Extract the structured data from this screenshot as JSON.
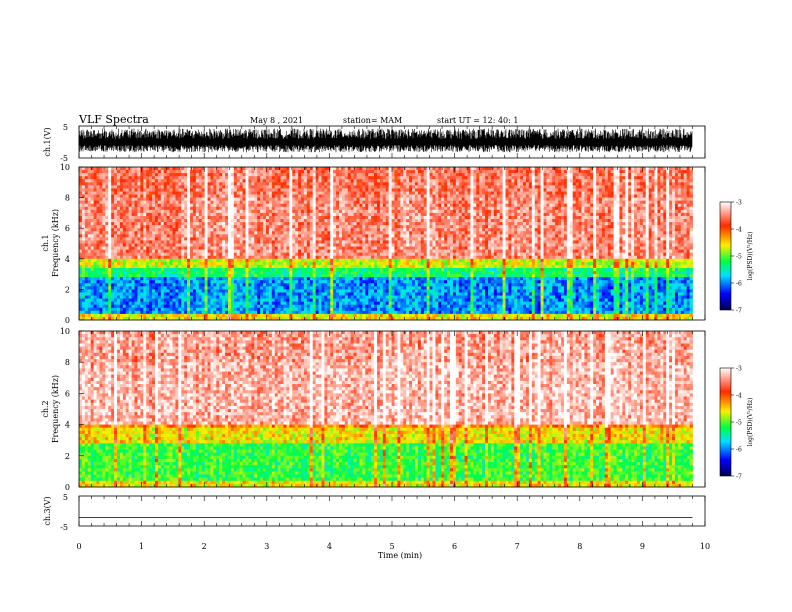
{
  "header": {
    "title": "VLF Spectra",
    "date": "May 8  , 2021",
    "station": "station= MAM",
    "start_ut": "start  UT  =   12: 40: 1"
  },
  "colorbar": {
    "label": "log(PSD)(V²/Hz)",
    "ticks": [
      "-3",
      "-4",
      "-5",
      "-6",
      "-7"
    ],
    "values": [
      -3,
      -4,
      -5,
      -6,
      -7
    ],
    "colors": [
      "#ffffff",
      "#ff2a00",
      "#ffff00",
      "#00ff40",
      "#00e0ff",
      "#0000ff",
      "#000050"
    ]
  },
  "xaxis": {
    "label": "Time  (min)",
    "ticks": [
      "0",
      "1",
      "2",
      "3",
      "4",
      "5",
      "6",
      "7",
      "8",
      "9",
      "10"
    ]
  },
  "chart_data": [
    {
      "type": "line",
      "ylabel": "ch.1(V)",
      "yticks": [
        "5",
        "-5"
      ],
      "ylim": [
        -5,
        5
      ],
      "xlim": [
        0,
        10
      ],
      "description_values": "dense broadband signal filling about -3 to +4 V from 0 to 9.8 min"
    },
    {
      "type": "heatmap",
      "ylabel": "ch.1\nFrequency (kHz)",
      "yticks": [
        "0",
        "2",
        "4",
        "6",
        "8",
        "10"
      ],
      "ylim": [
        0,
        10
      ],
      "xlim": [
        0,
        9.8
      ],
      "band_low_kHz": [
        0,
        3.5
      ],
      "band_high_kHz": [
        4,
        10
      ],
      "low_band_logpsd": -6.0,
      "high_band_logpsd": -3.5
    },
    {
      "type": "heatmap",
      "ylabel": "ch.2\nFrequency (kHz)",
      "yticks": [
        "0",
        "2",
        "4",
        "6",
        "8",
        "10"
      ],
      "ylim": [
        0,
        10
      ],
      "xlim": [
        0,
        9.8
      ],
      "band_low_kHz": [
        0,
        3.8
      ],
      "band_high_kHz": [
        4,
        10
      ],
      "low_band_logpsd": -5.2,
      "high_band_logpsd": -3.3
    },
    {
      "type": "line",
      "ylabel": "ch.3(V)",
      "yticks": [
        "5",
        "-5"
      ],
      "ylim": [
        -5,
        5
      ],
      "xlim": [
        0,
        10
      ],
      "x": [
        0,
        9.8
      ],
      "y": [
        -2.2,
        -2.2
      ]
    }
  ]
}
